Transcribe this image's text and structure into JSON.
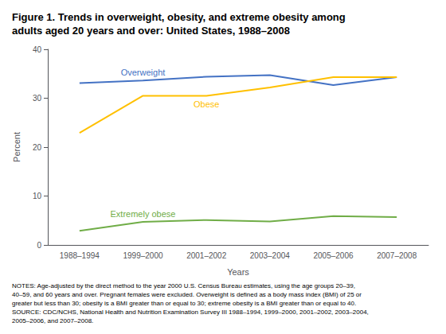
{
  "chart_data": {
    "type": "line",
    "title": [
      "Figure 1. Trends in overweight, obesity, and extreme obesity among",
      "adults aged 20 years and over: United States, 1988–2008"
    ],
    "xlabel": "Years",
    "ylabel": "Percent",
    "categories": [
      "1988–1994",
      "1999–2000",
      "2001–2002",
      "2003–2004",
      "2005–2006",
      "2007–2008"
    ],
    "series": [
      {
        "name": "Overweight",
        "color": "#4472C4",
        "values": [
          33.1,
          33.6,
          34.4,
          34.7,
          32.7,
          34.3
        ]
      },
      {
        "name": "Obese",
        "color": "#FFC000",
        "values": [
          22.9,
          30.5,
          30.5,
          32.2,
          34.3,
          34.3
        ]
      },
      {
        "name": "Extremely obese",
        "color": "#70AD47",
        "values": [
          2.9,
          4.7,
          5.1,
          4.8,
          5.9,
          5.7
        ]
      }
    ],
    "ylim": [
      0,
      40
    ],
    "yticks": [
      0,
      10,
      20,
      30,
      40
    ],
    "grid": false,
    "notes": [
      "NOTES: Age-adjusted by the direct method to the year 2000 U.S. Census Bureau estimates, using the age groups 20–39,",
      "40–59, and 60 years and over. Pregnant females were excluded. Overweight is defined as a body mass index (BMI) of 25 or",
      "greater but less than 30; obesity is a BMI greater than or equal to 30; extreme obesity is a BMI greater than or equal to 40.",
      "SOURCE: CDC/NCHS, National Health and Nutrition Examination Survey III 1988–1994, 1999–2000, 2001–2002, 2003–2004,",
      "2005–2006, and 2007–2008."
    ]
  }
}
